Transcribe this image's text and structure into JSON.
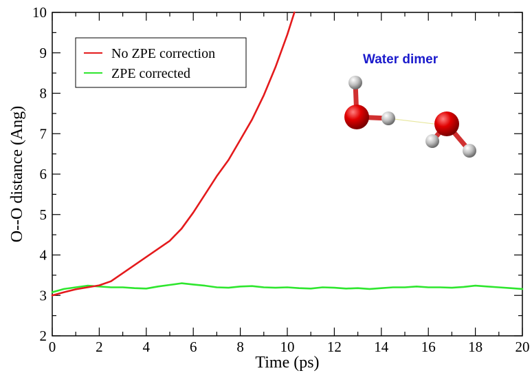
{
  "chart_data": {
    "type": "line",
    "xlabel": "Time (ps)",
    "ylabel": "O--O distance (Ang)",
    "xlim": [
      0,
      20
    ],
    "ylim": [
      2,
      10
    ],
    "x_ticks": [
      "0",
      "2",
      "4",
      "6",
      "8",
      "10",
      "12",
      "14",
      "16",
      "18",
      "20"
    ],
    "y_ticks": [
      "2",
      "3",
      "4",
      "5",
      "6",
      "7",
      "8",
      "9",
      "10"
    ],
    "grid": false,
    "legend_position": "top-left",
    "annotation": "Water dimer",
    "annotation_color": "#1a1acc",
    "series": [
      {
        "name": "No ZPE correction",
        "color": "#e41a1c",
        "x": [
          0,
          0.5,
          1,
          1.5,
          2,
          2.5,
          3,
          3.5,
          4,
          4.5,
          5,
          5.5,
          6,
          6.5,
          7,
          7.5,
          8,
          8.5,
          9,
          9.5,
          10,
          10.3
        ],
        "y": [
          3.0,
          3.08,
          3.15,
          3.2,
          3.25,
          3.35,
          3.55,
          3.75,
          3.95,
          4.15,
          4.35,
          4.65,
          5.05,
          5.5,
          5.95,
          6.35,
          6.85,
          7.35,
          7.95,
          8.65,
          9.45,
          10.0
        ]
      },
      {
        "name": "ZPE corrected",
        "color": "#2ee62e",
        "x": [
          0,
          0.5,
          1,
          1.5,
          2,
          2.5,
          3,
          3.5,
          4,
          4.5,
          5,
          5.5,
          6,
          6.5,
          7,
          7.5,
          8,
          8.5,
          9,
          9.5,
          10,
          10.5,
          11,
          11.5,
          12,
          12.5,
          13,
          13.5,
          14,
          14.5,
          15,
          15.5,
          16,
          16.5,
          17,
          17.5,
          18,
          18.5,
          19,
          19.5,
          20
        ],
        "y": [
          3.08,
          3.16,
          3.2,
          3.24,
          3.22,
          3.2,
          3.2,
          3.18,
          3.17,
          3.22,
          3.26,
          3.3,
          3.27,
          3.24,
          3.2,
          3.19,
          3.22,
          3.23,
          3.2,
          3.19,
          3.2,
          3.18,
          3.17,
          3.2,
          3.19,
          3.17,
          3.18,
          3.16,
          3.18,
          3.2,
          3.2,
          3.22,
          3.2,
          3.2,
          3.19,
          3.21,
          3.24,
          3.22,
          3.2,
          3.18,
          3.16
        ]
      }
    ]
  },
  "molecule": {
    "oxygen_color": "#e00000",
    "hydrogen_color": "#c8c8c8",
    "hbond_color": "#e8e8a0"
  }
}
